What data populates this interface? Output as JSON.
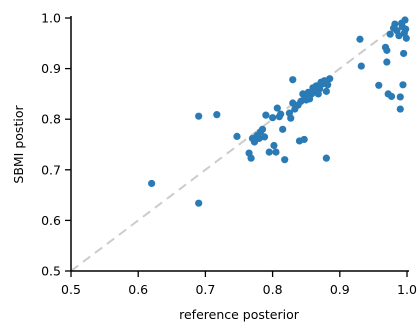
{
  "chart_data": {
    "type": "scatter",
    "xlabel": "reference posterior",
    "ylabel": "SBMI postior",
    "xlim": [
      0.5,
      1.0
    ],
    "ylim": [
      0.5,
      1.0
    ],
    "xticks": [
      "0.5",
      "0.6",
      "0.7",
      "0.8",
      "0.9",
      "1.0"
    ],
    "yticks": [
      "0.5",
      "0.6",
      "0.7",
      "0.8",
      "0.9",
      "1.0"
    ],
    "grid": false,
    "legend": "none",
    "reference_line": {
      "x": [
        0.5,
        1.0
      ],
      "y": [
        0.5,
        1.0
      ],
      "style": "dashed",
      "color": "#cccccc"
    },
    "series": [
      {
        "color": "#2a7bb5",
        "points": [
          [
            0.62,
            0.673
          ],
          [
            0.69,
            0.634
          ],
          [
            0.69,
            0.806
          ],
          [
            0.717,
            0.809
          ],
          [
            0.747,
            0.766
          ],
          [
            0.765,
            0.733
          ],
          [
            0.768,
            0.723
          ],
          [
            0.77,
            0.762
          ],
          [
            0.773,
            0.755
          ],
          [
            0.777,
            0.768
          ],
          [
            0.78,
            0.762
          ],
          [
            0.782,
            0.775
          ],
          [
            0.785,
            0.78
          ],
          [
            0.788,
            0.765
          ],
          [
            0.79,
            0.808
          ],
          [
            0.795,
            0.735
          ],
          [
            0.8,
            0.803
          ],
          [
            0.802,
            0.748
          ],
          [
            0.805,
            0.735
          ],
          [
            0.807,
            0.822
          ],
          [
            0.81,
            0.805
          ],
          [
            0.812,
            0.81
          ],
          [
            0.815,
            0.78
          ],
          [
            0.818,
            0.72
          ],
          [
            0.825,
            0.812
          ],
          [
            0.827,
            0.802
          ],
          [
            0.83,
            0.878
          ],
          [
            0.83,
            0.832
          ],
          [
            0.833,
            0.82
          ],
          [
            0.838,
            0.828
          ],
          [
            0.84,
            0.757
          ],
          [
            0.842,
            0.835
          ],
          [
            0.845,
            0.85
          ],
          [
            0.847,
            0.76
          ],
          [
            0.848,
            0.843
          ],
          [
            0.85,
            0.838
          ],
          [
            0.852,
            0.845
          ],
          [
            0.853,
            0.853
          ],
          [
            0.855,
            0.84
          ],
          [
            0.858,
            0.85
          ],
          [
            0.86,
            0.862
          ],
          [
            0.863,
            0.855
          ],
          [
            0.865,
            0.866
          ],
          [
            0.868,
            0.85
          ],
          [
            0.87,
            0.86
          ],
          [
            0.872,
            0.873
          ],
          [
            0.875,
            0.87
          ],
          [
            0.877,
            0.876
          ],
          [
            0.88,
            0.723
          ],
          [
            0.88,
            0.855
          ],
          [
            0.882,
            0.868
          ],
          [
            0.885,
            0.88
          ],
          [
            0.93,
            0.958
          ],
          [
            0.932,
            0.905
          ],
          [
            0.958,
            0.867
          ],
          [
            0.968,
            0.942
          ],
          [
            0.97,
            0.936
          ],
          [
            0.97,
            0.913
          ],
          [
            0.972,
            0.85
          ],
          [
            0.975,
            0.968
          ],
          [
            0.977,
            0.845
          ],
          [
            0.98,
            0.98
          ],
          [
            0.982,
            0.988
          ],
          [
            0.985,
            0.975
          ],
          [
            0.988,
            0.965
          ],
          [
            0.99,
            0.82
          ],
          [
            0.99,
            0.844
          ],
          [
            0.992,
            0.99
          ],
          [
            0.993,
            0.983
          ],
          [
            0.994,
            0.868
          ],
          [
            0.995,
            0.93
          ],
          [
            0.996,
            0.97
          ],
          [
            0.997,
            0.996
          ],
          [
            0.998,
            0.978
          ],
          [
            0.999,
            0.96
          ]
        ]
      }
    ]
  }
}
